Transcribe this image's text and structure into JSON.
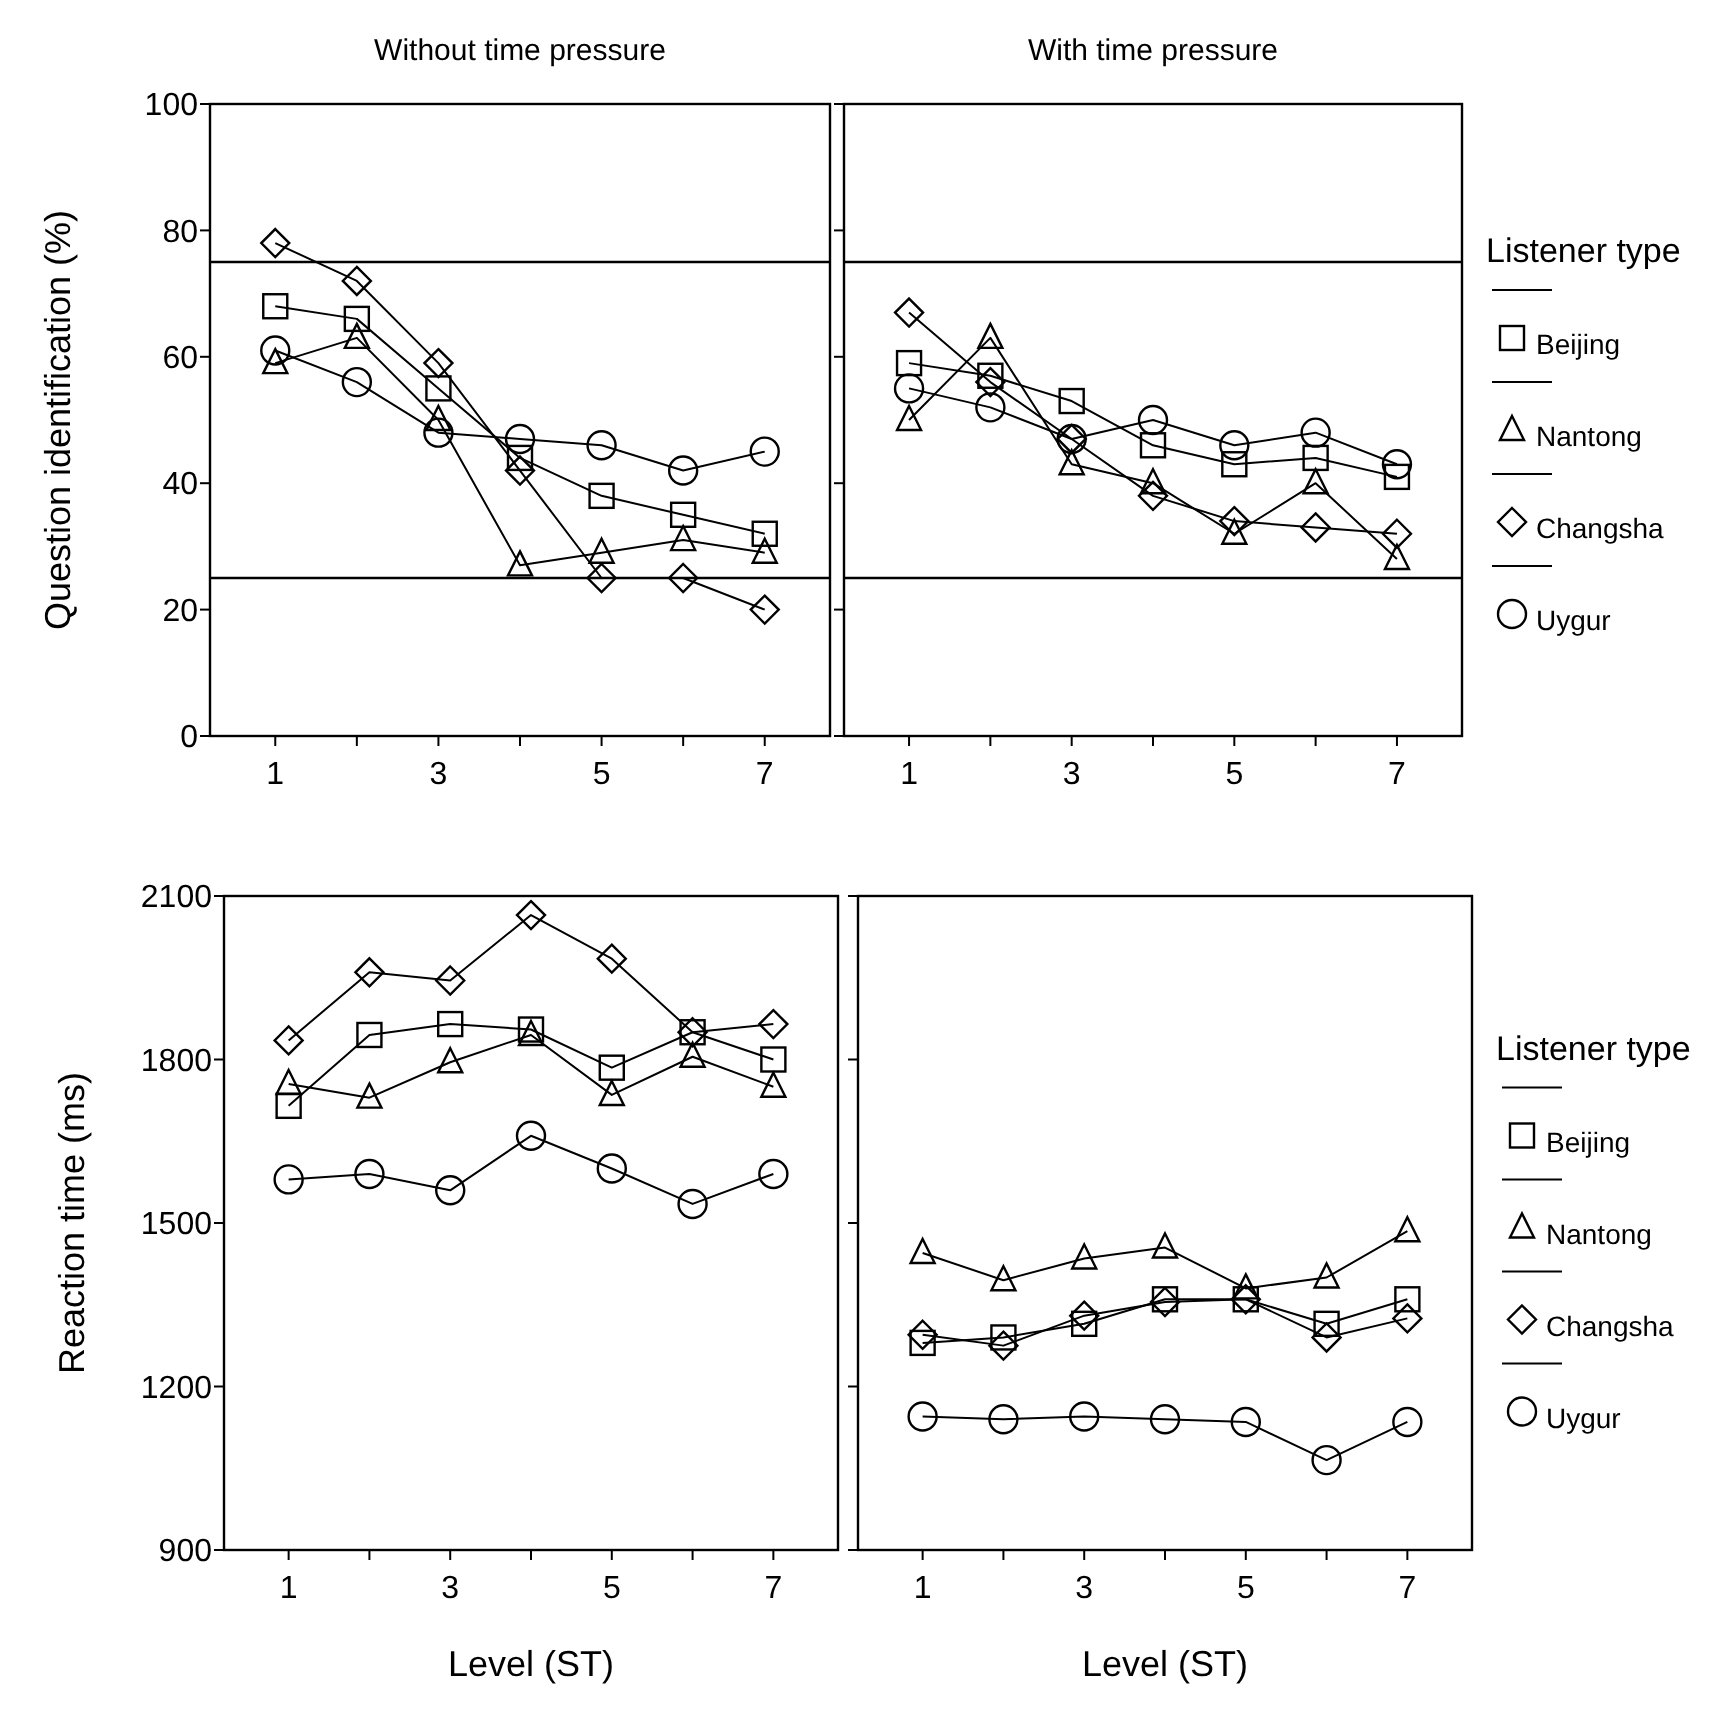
{
  "chart_data": [
    {
      "type": "line",
      "title": "Without time pressure",
      "ylabel": "Question identification (%)",
      "x": [
        1,
        2,
        3,
        4,
        5,
        6,
        7
      ],
      "xlim": [
        0.2,
        7.8
      ],
      "xticks": [
        1,
        {
          "value": 2,
          "label": null
        },
        3,
        {
          "value": 4,
          "label": null
        },
        5,
        {
          "value": 6,
          "label": null
        },
        7
      ],
      "ylim": [
        0,
        100
      ],
      "yticks": [
        0,
        20,
        40,
        60,
        80,
        100
      ],
      "grid": false,
      "legend": false,
      "ref_lines": [
        {
          "axis": "y",
          "value": 25,
          "color": "#000000"
        },
        {
          "axis": "y",
          "value": 75,
          "color": "#000000"
        }
      ],
      "series": [
        {
          "color": "#000000",
          "marker": "square",
          "values": [
            68,
            66,
            55,
            44,
            38,
            35,
            32
          ]
        },
        {
          "color": "#000000",
          "marker": "triangle",
          "values": [
            59,
            63,
            50,
            27,
            29,
            31,
            29
          ]
        },
        {
          "color": "#000000",
          "marker": "diamond",
          "values": [
            78,
            72,
            59,
            42,
            25,
            25,
            20
          ]
        },
        {
          "color": "#000000",
          "marker": "circle",
          "values": [
            61,
            56,
            48,
            47,
            46,
            42,
            45
          ]
        }
      ]
    },
    {
      "type": "line",
      "title": "With time pressure",
      "legend_title": "Listener type",
      "x": [
        1,
        2,
        3,
        4,
        5,
        6,
        7
      ],
      "xlim": [
        0.2,
        7.8
      ],
      "xticks": [
        1,
        {
          "value": 2,
          "label": null
        },
        3,
        {
          "value": 4,
          "label": null
        },
        5,
        {
          "value": 6,
          "label": null
        },
        7
      ],
      "ylim": [
        0,
        100
      ],
      "yticks": [
        0,
        20,
        40,
        60,
        80,
        100
      ],
      "tick_labels": "x",
      "grid": false,
      "legend": "right",
      "ref_lines": [
        {
          "axis": "y",
          "value": 25,
          "color": "#000000"
        },
        {
          "axis": "y",
          "value": 75,
          "color": "#000000"
        }
      ],
      "series": [
        {
          "name": "Beijing",
          "color": "#000000",
          "marker": "square",
          "values": [
            59,
            57,
            53,
            46,
            43,
            44,
            41
          ]
        },
        {
          "name": "Nantong",
          "color": "#000000",
          "marker": "triangle",
          "values": [
            50,
            63,
            43,
            40,
            32,
            40,
            28
          ]
        },
        {
          "name": "Changsha",
          "color": "#000000",
          "marker": "diamond",
          "values": [
            67,
            56,
            47,
            38,
            34,
            33,
            32
          ]
        },
        {
          "name": "Uygur",
          "color": "#000000",
          "marker": "circle",
          "values": [
            55,
            52,
            47,
            50,
            46,
            48,
            43
          ]
        }
      ]
    },
    {
      "type": "line",
      "ylabel": "Reaction time (ms)",
      "xlabel": "Level (ST)",
      "x": [
        1,
        2,
        3,
        4,
        5,
        6,
        7
      ],
      "xlim": [
        0.2,
        7.8
      ],
      "xticks": [
        1,
        {
          "value": 2,
          "label": null
        },
        3,
        {
          "value": 4,
          "label": null
        },
        5,
        {
          "value": 6,
          "label": null
        },
        7
      ],
      "ylim": [
        900,
        2100
      ],
      "yticks": [
        900,
        1200,
        1500,
        1800,
        2100
      ],
      "grid": false,
      "legend": false,
      "series": [
        {
          "color": "#000000",
          "marker": "square",
          "values": [
            1715,
            1845,
            1865,
            1855,
            1785,
            1850,
            1800
          ]
        },
        {
          "color": "#000000",
          "marker": "triangle",
          "values": [
            1755,
            1730,
            1795,
            1845,
            1735,
            1805,
            1750
          ]
        },
        {
          "color": "#000000",
          "marker": "diamond",
          "values": [
            1835,
            1960,
            1945,
            2065,
            1985,
            1850,
            1865
          ]
        },
        {
          "color": "#000000",
          "marker": "circle",
          "values": [
            1580,
            1590,
            1560,
            1660,
            1600,
            1535,
            1590
          ]
        }
      ]
    },
    {
      "type": "line",
      "xlabel": "Level (ST)",
      "legend_title": "Listener type",
      "x": [
        1,
        2,
        3,
        4,
        5,
        6,
        7
      ],
      "xlim": [
        0.2,
        7.8
      ],
      "xticks": [
        1,
        {
          "value": 2,
          "label": null
        },
        3,
        {
          "value": 4,
          "label": null
        },
        5,
        {
          "value": 6,
          "label": null
        },
        7
      ],
      "ylim": [
        900,
        2100
      ],
      "yticks": [
        900,
        1200,
        1500,
        1800,
        2100
      ],
      "tick_labels": "x",
      "grid": false,
      "legend": "right",
      "series": [
        {
          "name": "Beijing",
          "color": "#000000",
          "marker": "square",
          "values": [
            1280,
            1290,
            1315,
            1360,
            1360,
            1315,
            1360
          ]
        },
        {
          "name": "Nantong",
          "color": "#000000",
          "marker": "triangle",
          "values": [
            1445,
            1395,
            1435,
            1455,
            1380,
            1400,
            1485
          ]
        },
        {
          "name": "Changsha",
          "color": "#000000",
          "marker": "diamond",
          "values": [
            1295,
            1275,
            1330,
            1355,
            1360,
            1290,
            1325
          ]
        },
        {
          "name": "Uygur",
          "color": "#000000",
          "marker": "circle",
          "values": [
            1145,
            1140,
            1145,
            1140,
            1135,
            1065,
            1135
          ]
        }
      ]
    }
  ]
}
